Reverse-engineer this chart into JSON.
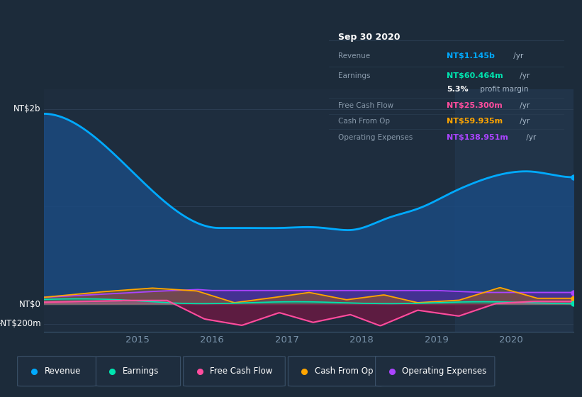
{
  "bg_color": "#1c2b3a",
  "plot_bg_color": "#1e2d3e",
  "highlight_bg": "#243447",
  "grid_color": "#2e4055",
  "ytick_labels": [
    "NT$2b",
    "NT$0",
    "-NT$200m"
  ],
  "xtick_labels": [
    "2015",
    "2016",
    "2017",
    "2018",
    "2019",
    "2020"
  ],
  "legend": [
    {
      "label": "Revenue",
      "color": "#00aaff"
    },
    {
      "label": "Earnings",
      "color": "#00e5b0"
    },
    {
      "label": "Free Cash Flow",
      "color": "#ff4d9e"
    },
    {
      "label": "Cash From Op",
      "color": "#ffa500"
    },
    {
      "label": "Operating Expenses",
      "color": "#aa44ff"
    }
  ],
  "info_title": "Sep 30 2020",
  "info_rows": [
    {
      "label": "Revenue",
      "value": "NT$1.145b",
      "suffix": " /yr",
      "color": "#00aaff"
    },
    {
      "label": "Earnings",
      "value": "NT$60.464m",
      "suffix": " /yr",
      "color": "#00e5b0"
    },
    {
      "label": "",
      "value": "5.3%",
      "suffix": " profit margin",
      "color": "#ffffff"
    },
    {
      "label": "Free Cash Flow",
      "value": "NT$25.300m",
      "suffix": " /yr",
      "color": "#ff4d9e"
    },
    {
      "label": "Cash From Op",
      "value": "NT$59.935m",
      "suffix": " /yr",
      "color": "#ffa500"
    },
    {
      "label": "Operating Expenses",
      "value": "NT$138.951m",
      "suffix": " /yr",
      "color": "#aa44ff"
    }
  ]
}
